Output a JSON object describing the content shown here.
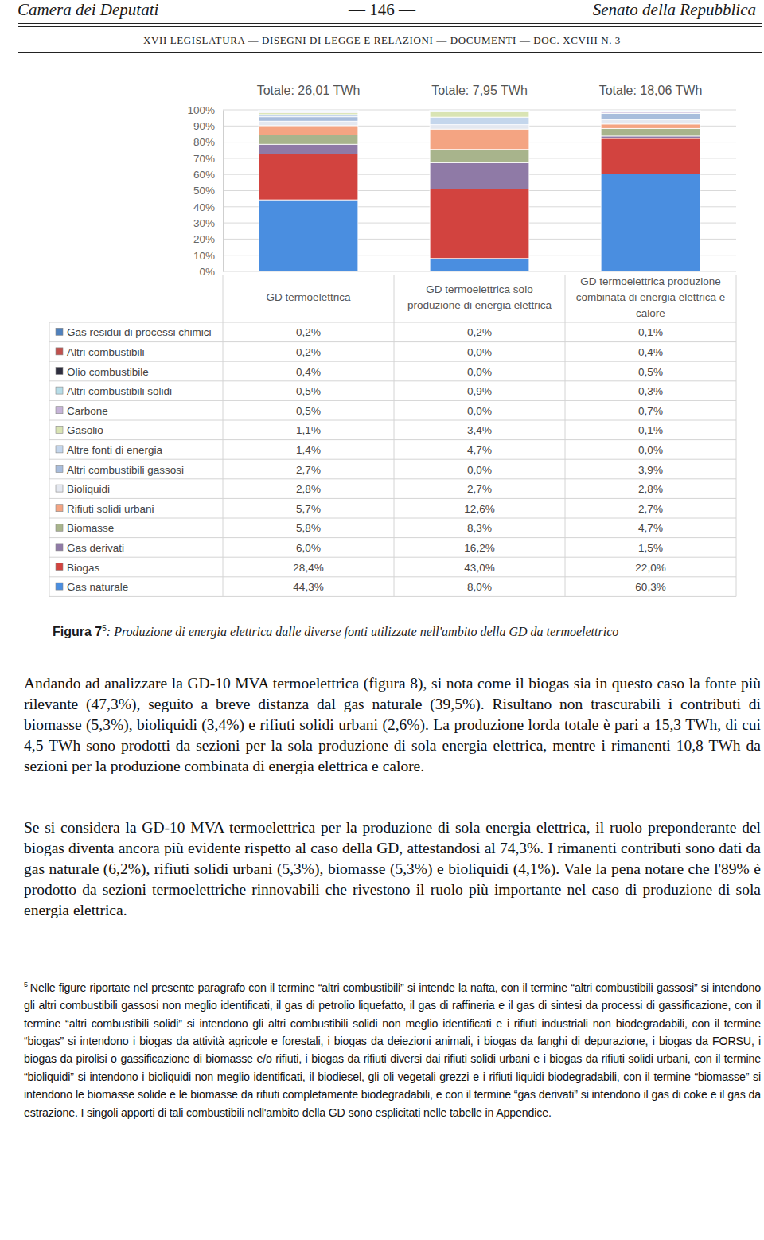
{
  "header": {
    "left": "Camera dei Deputati",
    "center": "— 146 —",
    "right": "Senato della Repubblica",
    "subline": "XVII LEGISLATURA — DISEGNI DI LEGGE E RELAZIONI — DOCUMENTI — DOC. XCVIII N. 3"
  },
  "chart_data": {
    "type": "bar",
    "stacked": true,
    "grid": true,
    "annotations": [
      "Totale: 26,01 TWh",
      "Totale: 7,95 TWh",
      "Totale: 18,06 TWh"
    ],
    "categories": [
      "GD termoelettrica",
      "GD termoelettrica solo produzione di energia elettrica",
      "GD termoelettrica produzione combinata di energia elettrica e calore"
    ],
    "ylim": [
      0,
      100
    ],
    "yticks": [
      {
        "value": 0,
        "label": "0%"
      },
      {
        "value": 10,
        "label": "10%"
      },
      {
        "value": 20,
        "label": "20%"
      },
      {
        "value": 30,
        "label": "30%"
      },
      {
        "value": 40,
        "label": "40%"
      },
      {
        "value": 50,
        "label": "50%"
      },
      {
        "value": 60,
        "label": "60%"
      },
      {
        "value": 70,
        "label": "70%"
      },
      {
        "value": 80,
        "label": "80%"
      },
      {
        "value": 90,
        "label": "90%"
      },
      {
        "value": 100,
        "label": "100%"
      }
    ],
    "series": [
      {
        "name": "Gas residui di processi chimici",
        "color": "#4f81bd",
        "values": [
          0.2,
          0.2,
          0.1
        ],
        "value_labels": [
          "0,2%",
          "0,2%",
          "0,1%"
        ]
      },
      {
        "name": "Altri combustibili",
        "color": "#c0504d",
        "values": [
          0.2,
          0.0,
          0.4
        ],
        "value_labels": [
          "0,2%",
          "0,0%",
          "0,4%"
        ]
      },
      {
        "name": "Olio combustibile",
        "color": "#2e2e3e",
        "values": [
          0.4,
          0.0,
          0.5
        ],
        "value_labels": [
          "0,4%",
          "0,0%",
          "0,5%"
        ]
      },
      {
        "name": "Altri combustibili solidi",
        "color": "#b7dde8",
        "values": [
          0.5,
          0.9,
          0.3
        ],
        "value_labels": [
          "0,5%",
          "0,9%",
          "0,3%"
        ]
      },
      {
        "name": "Carbone",
        "color": "#c6b4d8",
        "values": [
          0.5,
          0.0,
          0.7
        ],
        "value_labels": [
          "0,5%",
          "0,0%",
          "0,7%"
        ]
      },
      {
        "name": "Gasolio",
        "color": "#d9e4b4",
        "values": [
          1.1,
          3.4,
          0.1
        ],
        "value_labels": [
          "1,1%",
          "3,4%",
          "0,1%"
        ]
      },
      {
        "name": "Altre fonti di energia",
        "color": "#c4d6ec",
        "values": [
          1.4,
          4.7,
          0.0
        ],
        "value_labels": [
          "1,4%",
          "4,7%",
          "0,0%"
        ]
      },
      {
        "name": "Altri combustibili gassosi",
        "color": "#a8bddc",
        "values": [
          2.7,
          0.0,
          3.9
        ],
        "value_labels": [
          "2,7%",
          "0,0%",
          "3,9%"
        ]
      },
      {
        "name": "Bioliquidi",
        "color": "#e4e8f0",
        "values": [
          2.8,
          2.7,
          2.8
        ],
        "value_labels": [
          "2,8%",
          "2,7%",
          "2,8%"
        ]
      },
      {
        "name": "Rifiuti solidi urbani",
        "color": "#f4a482",
        "values": [
          5.7,
          12.6,
          2.7
        ],
        "value_labels": [
          "5,7%",
          "12,6%",
          "2,7%"
        ]
      },
      {
        "name": "Biomasse",
        "color": "#a8b48c",
        "values": [
          5.8,
          8.3,
          4.7
        ],
        "value_labels": [
          "5,8%",
          "8,3%",
          "4,7%"
        ]
      },
      {
        "name": "Gas derivati",
        "color": "#8f7aa6",
        "values": [
          6.0,
          16.2,
          1.5
        ],
        "value_labels": [
          "6,0%",
          "16,2%",
          "1,5%"
        ]
      },
      {
        "name": "Biogas",
        "color": "#d2433f",
        "values": [
          28.4,
          43.0,
          22.0
        ],
        "value_labels": [
          "28,4%",
          "43,0%",
          "22,0%"
        ]
      },
      {
        "name": "Gas naturale",
        "color": "#4a8ee0",
        "values": [
          44.3,
          8.0,
          60.3
        ],
        "value_labels": [
          "44,3%",
          "8,0%",
          "60,3%"
        ]
      }
    ]
  },
  "caption": {
    "label": "Figura 7",
    "note_ref": "5",
    "text": ": Produzione di energia elettrica dalle diverse fonti utilizzate nell'ambito della GD da termoelettrico"
  },
  "body": [
    "Andando ad analizzare la GD-10 MVA termoelettrica (figura 8), si nota come il biogas sia in questo caso la fonte più rilevante (47,3%), seguito a breve distanza dal gas naturale (39,5%). Risultano non trascurabili i contributi di biomasse (5,3%), bioliquidi (3,4%) e rifiuti solidi urbani (2,6%). La produzione lorda totale è pari a 15,3 TWh, di cui 4,5 TWh sono prodotti da sezioni per la sola produzione di sola energia elettrica, mentre i rimanenti 10,8 TWh da sezioni per la produzione combinata di energia elettrica e calore.",
    "Se si considera la GD-10 MVA termoelettrica per la produzione di sola energia elettrica, il ruolo preponderante del biogas diventa ancora più evidente rispetto al caso della GD, attestandosi al 74,3%. I rimanenti contributi sono dati da gas naturale (6,2%), rifiuti solidi urbani (5,3%), biomasse (5,3%) e bioliquidi (4,1%). Vale la pena notare che l'89% è prodotto da sezioni termoelettriche rinnovabili che rivestono il ruolo più importante nel caso di produzione di sola energia elettrica."
  ],
  "footnote": {
    "ref": "5",
    "text": "Nelle figure riportate nel presente paragrafo con il termine “altri combustibili” si intende la nafta, con il termine “altri combustibili gassosi” si intendono gli altri combustibili gassosi non meglio identificati, il gas di petrolio liquefatto, il gas di raffineria e il gas di sintesi da processi di gassificazione, con il termine “altri combustibili solidi” si intendono gli altri combustibili solidi non meglio identificati e i rifiuti industriali non biodegradabili, con il termine “biogas” si intendono i biogas da attività agricole e forestali, i biogas da deiezioni animali, i biogas da fanghi di depurazione, i biogas da FORSU, i biogas da pirolisi o gassificazione di biomasse e/o rifiuti, i biogas da rifiuti diversi dai rifiuti solidi urbani e i biogas da rifiuti solidi urbani, con il termine “bioliquidi” si intendono i bioliquidi non meglio identificati, il biodiesel, gli oli vegetali grezzi e i rifiuti liquidi biodegradabili, con il termine “biomasse” si intendono le biomasse solide e le biomasse da rifiuti completamente biodegradabili, e con il termine “gas derivati” si intendono il gas di coke e il gas da estrazione. I singoli apporti di tali combustibili nell'ambito della GD sono esplicitati nelle tabelle in Appendice."
  }
}
